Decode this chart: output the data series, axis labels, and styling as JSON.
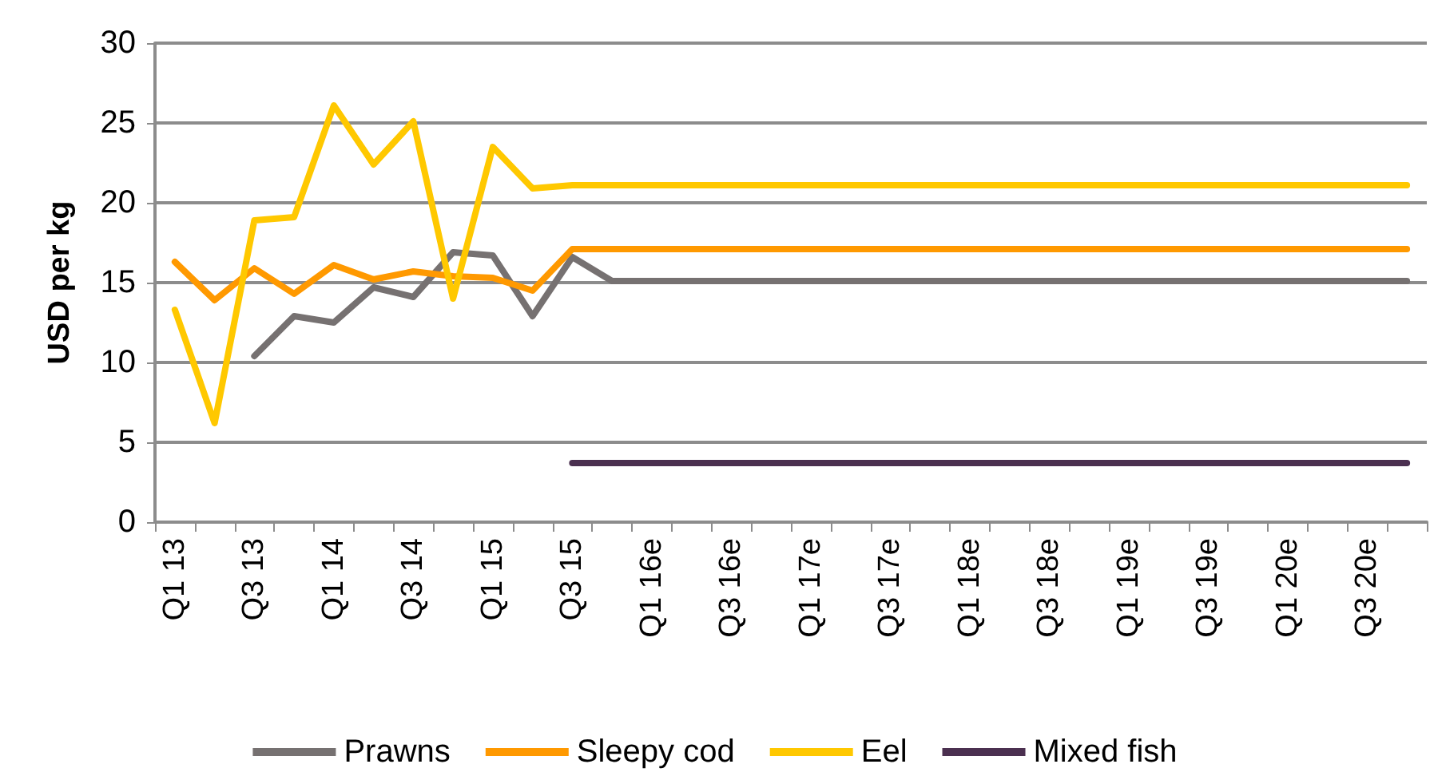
{
  "chart_data": {
    "type": "line",
    "ylabel": "USD per kg",
    "categories": [
      "Q1 13",
      null,
      "Q3 13",
      null,
      "Q1 14",
      null,
      "Q3 14",
      null,
      "Q1 15",
      null,
      "Q3 15",
      null,
      "Q1 16e",
      null,
      "Q3 16e",
      null,
      "Q1 17e",
      null,
      "Q3 17e",
      null,
      "Q1 18e",
      null,
      "Q3 18e",
      null,
      "Q1 19e",
      null,
      "Q3 19e",
      null,
      "Q1 20e",
      null,
      "Q3 20e",
      null
    ],
    "series": [
      {
        "name": "Prawns",
        "color": "#767171",
        "values": [
          null,
          null,
          10.4,
          12.9,
          12.5,
          14.7,
          14.1,
          16.9,
          16.7,
          12.9,
          16.6,
          15.1,
          15.1,
          15.1,
          15.1,
          15.1,
          15.1,
          15.1,
          15.1,
          15.1,
          15.1,
          15.1,
          15.1,
          15.1,
          15.1,
          15.1,
          15.1,
          15.1,
          15.1,
          15.1,
          15.1,
          15.1
        ]
      },
      {
        "name": "Sleepy cod",
        "color": "#ff9900",
        "values": [
          16.3,
          13.9,
          15.9,
          14.3,
          16.1,
          15.2,
          15.7,
          15.4,
          15.3,
          14.5,
          17.1,
          17.1,
          17.1,
          17.1,
          17.1,
          17.1,
          17.1,
          17.1,
          17.1,
          17.1,
          17.1,
          17.1,
          17.1,
          17.1,
          17.1,
          17.1,
          17.1,
          17.1,
          17.1,
          17.1,
          17.1,
          17.1
        ]
      },
      {
        "name": "Eel",
        "color": "#ffc800",
        "values": [
          13.3,
          6.2,
          18.9,
          19.1,
          26.1,
          22.4,
          25.1,
          14.0,
          23.5,
          20.9,
          21.1,
          21.1,
          21.1,
          21.1,
          21.1,
          21.1,
          21.1,
          21.1,
          21.1,
          21.1,
          21.1,
          21.1,
          21.1,
          21.1,
          21.1,
          21.1,
          21.1,
          21.1,
          21.1,
          21.1,
          21.1,
          21.1
        ]
      },
      {
        "name": "Mixed fish",
        "color": "#4b3050",
        "values": [
          null,
          null,
          null,
          null,
          null,
          null,
          null,
          null,
          null,
          null,
          3.7,
          3.7,
          3.7,
          3.7,
          3.7,
          3.7,
          3.7,
          3.7,
          3.7,
          3.7,
          3.7,
          3.7,
          3.7,
          3.7,
          3.7,
          3.7,
          3.7,
          3.7,
          3.7,
          3.7,
          3.7,
          3.7
        ]
      }
    ],
    "ylim": [
      0,
      30
    ],
    "yticks": [
      0,
      5,
      10,
      15,
      20,
      25,
      30
    ],
    "grid": "y",
    "legend": "bottom",
    "marker": "none",
    "line_style": "solid"
  }
}
